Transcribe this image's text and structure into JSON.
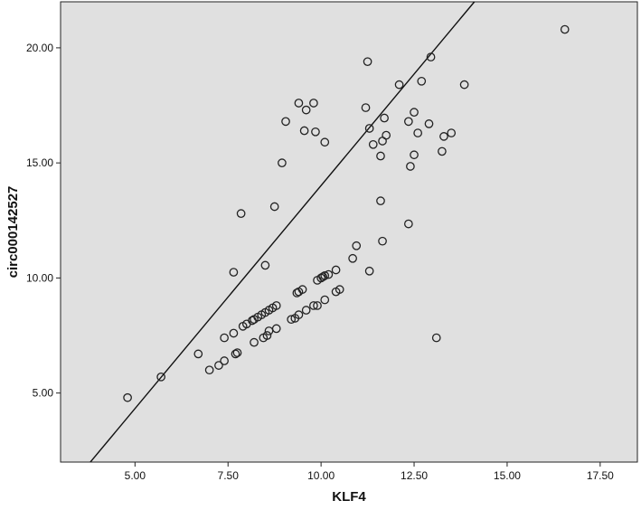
{
  "chart_data": {
    "type": "scatter",
    "title": "",
    "xlabel": "KLF4",
    "ylabel": "circ000142527",
    "xlim": [
      3.0,
      18.5
    ],
    "ylim": [
      2.0,
      22.0
    ],
    "x_ticks": [
      5.0,
      7.5,
      10.0,
      12.5,
      15.0,
      17.5
    ],
    "x_tick_labels": [
      "5.00",
      "7.50",
      "10.00",
      "12.50",
      "15.00",
      "17.50"
    ],
    "y_ticks": [
      5.0,
      10.0,
      15.0,
      20.0
    ],
    "y_tick_labels": [
      "5.00",
      "10.00",
      "15.00",
      "20.00"
    ],
    "grid": false,
    "colors": {
      "plot_background": "#e0e0e0",
      "marker_stroke": "#222222",
      "line": "#111111"
    },
    "fit_line": {
      "x": [
        3.8,
        14.12
      ],
      "y": [
        2.0,
        22.0
      ]
    },
    "points": [
      {
        "x": 4.8,
        "y": 4.8
      },
      {
        "x": 5.7,
        "y": 5.7
      },
      {
        "x": 6.7,
        "y": 6.7
      },
      {
        "x": 7.0,
        "y": 6.0
      },
      {
        "x": 7.25,
        "y": 6.2
      },
      {
        "x": 7.4,
        "y": 6.4
      },
      {
        "x": 7.4,
        "y": 7.4
      },
      {
        "x": 7.65,
        "y": 7.6
      },
      {
        "x": 7.7,
        "y": 6.7
      },
      {
        "x": 7.75,
        "y": 6.75
      },
      {
        "x": 7.9,
        "y": 7.9
      },
      {
        "x": 8.0,
        "y": 8.0
      },
      {
        "x": 8.15,
        "y": 8.15
      },
      {
        "x": 8.2,
        "y": 8.2
      },
      {
        "x": 8.3,
        "y": 8.3
      },
      {
        "x": 8.4,
        "y": 8.4
      },
      {
        "x": 8.5,
        "y": 8.5
      },
      {
        "x": 8.6,
        "y": 8.6
      },
      {
        "x": 8.7,
        "y": 8.7
      },
      {
        "x": 8.8,
        "y": 8.8
      },
      {
        "x": 8.2,
        "y": 7.2
      },
      {
        "x": 8.45,
        "y": 7.4
      },
      {
        "x": 8.55,
        "y": 7.5
      },
      {
        "x": 8.6,
        "y": 7.7
      },
      {
        "x": 8.8,
        "y": 7.8
      },
      {
        "x": 9.2,
        "y": 8.2
      },
      {
        "x": 9.3,
        "y": 8.25
      },
      {
        "x": 9.4,
        "y": 8.4
      },
      {
        "x": 9.6,
        "y": 8.6
      },
      {
        "x": 9.8,
        "y": 8.8
      },
      {
        "x": 9.9,
        "y": 8.8
      },
      {
        "x": 10.1,
        "y": 9.05
      },
      {
        "x": 9.35,
        "y": 9.35
      },
      {
        "x": 9.4,
        "y": 9.4
      },
      {
        "x": 9.5,
        "y": 9.5
      },
      {
        "x": 9.9,
        "y": 9.9
      },
      {
        "x": 10.0,
        "y": 10.0
      },
      {
        "x": 10.05,
        "y": 10.05
      },
      {
        "x": 10.1,
        "y": 10.1
      },
      {
        "x": 10.2,
        "y": 10.15
      },
      {
        "x": 10.4,
        "y": 10.35
      },
      {
        "x": 10.4,
        "y": 9.4
      },
      {
        "x": 10.5,
        "y": 9.5
      },
      {
        "x": 10.85,
        "y": 10.85
      },
      {
        "x": 10.95,
        "y": 11.4
      },
      {
        "x": 11.3,
        "y": 10.3
      },
      {
        "x": 7.65,
        "y": 10.25
      },
      {
        "x": 8.5,
        "y": 10.55
      },
      {
        "x": 7.85,
        "y": 12.8
      },
      {
        "x": 8.75,
        "y": 13.1
      },
      {
        "x": 8.95,
        "y": 15.0
      },
      {
        "x": 9.05,
        "y": 16.8
      },
      {
        "x": 9.4,
        "y": 17.6
      },
      {
        "x": 9.55,
        "y": 16.4
      },
      {
        "x": 9.6,
        "y": 17.3
      },
      {
        "x": 9.8,
        "y": 17.6
      },
      {
        "x": 9.85,
        "y": 16.35
      },
      {
        "x": 10.1,
        "y": 15.9
      },
      {
        "x": 11.2,
        "y": 17.4
      },
      {
        "x": 11.25,
        "y": 19.4
      },
      {
        "x": 11.3,
        "y": 16.5
      },
      {
        "x": 11.4,
        "y": 15.8
      },
      {
        "x": 11.6,
        "y": 15.3
      },
      {
        "x": 11.65,
        "y": 15.95
      },
      {
        "x": 11.7,
        "y": 16.95
      },
      {
        "x": 11.75,
        "y": 16.2
      },
      {
        "x": 11.6,
        "y": 13.35
      },
      {
        "x": 11.65,
        "y": 11.6
      },
      {
        "x": 12.1,
        "y": 18.4
      },
      {
        "x": 12.35,
        "y": 16.8
      },
      {
        "x": 12.4,
        "y": 14.85
      },
      {
        "x": 12.5,
        "y": 15.35
      },
      {
        "x": 12.5,
        "y": 17.2
      },
      {
        "x": 12.6,
        "y": 16.3
      },
      {
        "x": 12.7,
        "y": 18.55
      },
      {
        "x": 12.35,
        "y": 12.35
      },
      {
        "x": 12.9,
        "y": 16.7
      },
      {
        "x": 12.95,
        "y": 19.6
      },
      {
        "x": 13.25,
        "y": 15.5
      },
      {
        "x": 13.3,
        "y": 16.15
      },
      {
        "x": 13.5,
        "y": 16.3
      },
      {
        "x": 13.85,
        "y": 18.4
      },
      {
        "x": 13.1,
        "y": 7.4
      },
      {
        "x": 16.55,
        "y": 20.8
      }
    ]
  }
}
